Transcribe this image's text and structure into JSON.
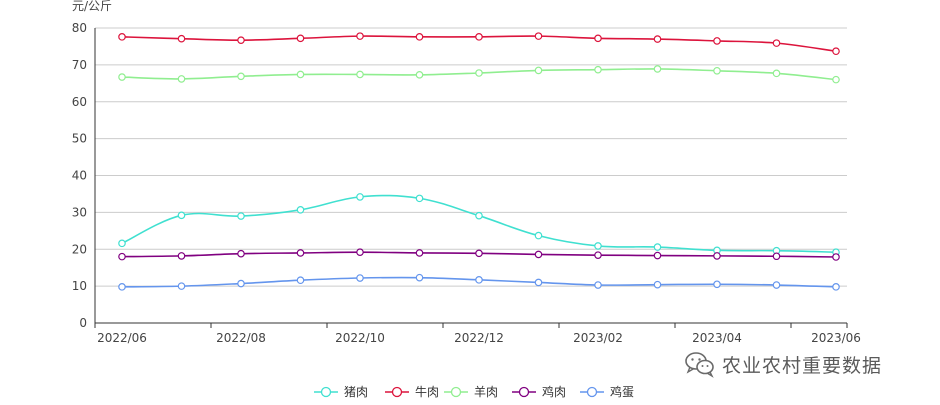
{
  "watermark": {
    "text": "农业农村重要数据",
    "icon": "wechat-icon"
  },
  "chart_data": {
    "type": "line",
    "ylabel": "元/公斤",
    "ylim": [
      0,
      80
    ],
    "yticks": [
      0,
      10,
      20,
      30,
      40,
      50,
      60,
      70,
      80
    ],
    "grid": true,
    "legend_position": "bottom-center",
    "x": [
      "2022/06",
      "2022/07",
      "2022/08",
      "2022/09",
      "2022/10",
      "2022/11",
      "2022/12",
      "2023/01",
      "2023/02",
      "2023/03",
      "2023/04",
      "2023/05",
      "2023/06"
    ],
    "xtick_labels": [
      "2022/06",
      "2022/08",
      "2022/10",
      "2022/12",
      "2023/02",
      "2023/04",
      "2023/06"
    ],
    "series": [
      {
        "name": "猪肉",
        "color": "#40e0d0",
        "values": [
          21.6,
          29.2,
          29.0,
          30.7,
          34.2,
          33.8,
          29.1,
          23.7,
          20.9,
          20.6,
          19.7,
          19.6,
          19.2
        ]
      },
      {
        "name": "牛肉",
        "color": "#dc143c",
        "values": [
          77.6,
          77.1,
          76.7,
          77.2,
          77.8,
          77.6,
          77.6,
          77.8,
          77.2,
          77.0,
          76.5,
          75.9,
          73.7
        ]
      },
      {
        "name": "羊肉",
        "color": "#90ee90",
        "values": [
          66.7,
          66.2,
          66.9,
          67.4,
          67.4,
          67.3,
          67.8,
          68.5,
          68.7,
          68.9,
          68.4,
          67.7,
          66.0
        ]
      },
      {
        "name": "鸡肉",
        "color": "#800080",
        "values": [
          18.0,
          18.2,
          18.8,
          19.0,
          19.2,
          19.0,
          18.9,
          18.6,
          18.4,
          18.3,
          18.2,
          18.1,
          17.9
        ]
      },
      {
        "name": "鸡蛋",
        "color": "#6495ed",
        "values": [
          9.8,
          10.0,
          10.7,
          11.6,
          12.2,
          12.3,
          11.7,
          11.0,
          10.3,
          10.4,
          10.5,
          10.3,
          9.8
        ]
      }
    ]
  }
}
